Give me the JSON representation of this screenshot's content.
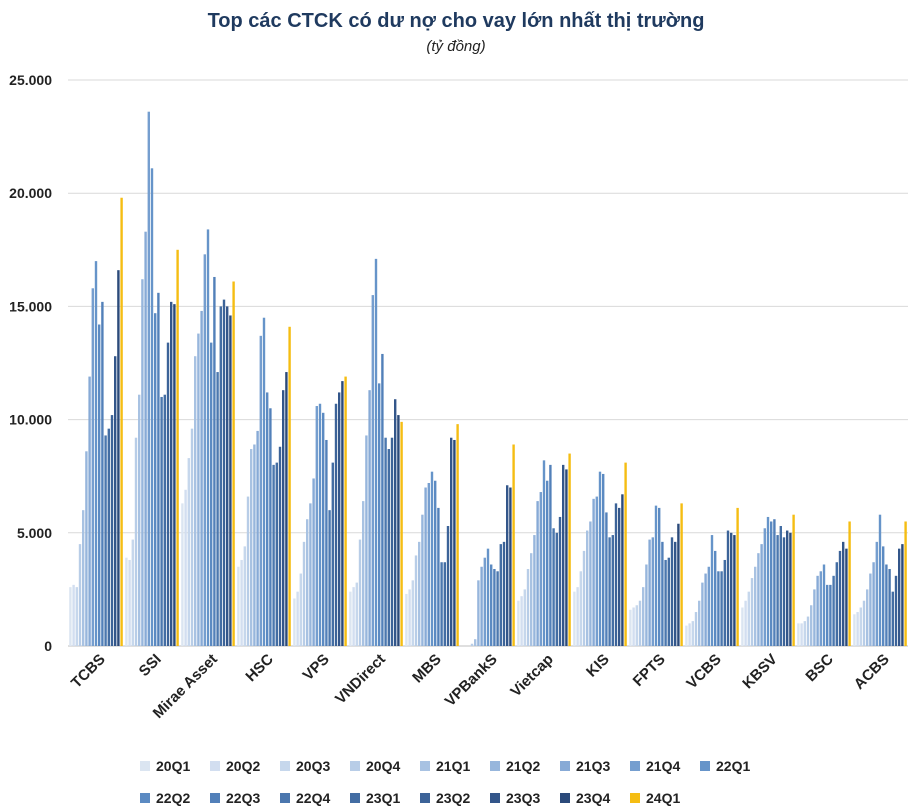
{
  "chart_data": {
    "type": "bar",
    "title": "Top các CTCK có dư nợ cho vay lớn nhất thị trường",
    "subtitle": "(tỷ đồng)",
    "xlabel": "",
    "ylabel": "",
    "ylim": [
      0,
      25000
    ],
    "yticks": [
      "0",
      "5.000",
      "10.000",
      "15.000",
      "20.000",
      "25.000"
    ],
    "grid": true,
    "legend_position": "bottom",
    "categories": [
      "TCBS",
      "SSI",
      "Mirae Asset",
      "HSC",
      "VPS",
      "VNDirect",
      "MBS",
      "VPBankS",
      "Vietcap",
      "KIS",
      "FPTS",
      "VCBS",
      "KBSV",
      "BSC",
      "ACBS"
    ],
    "series": [
      {
        "name": "20Q1",
        "color": "#dbe5f1",
        "values": [
          2600,
          3900,
          6300,
          3500,
          2100,
          2400,
          2300,
          0,
          2000,
          2400,
          1600,
          900,
          1700,
          1000,
          1400
        ]
      },
      {
        "name": "20Q2",
        "color": "#d2def0",
        "values": [
          2700,
          3800,
          6900,
          3800,
          2400,
          2600,
          2500,
          0,
          2200,
          2600,
          1700,
          1000,
          2000,
          1000,
          1500
        ]
      },
      {
        "name": "20Q3",
        "color": "#c6d7ec",
        "values": [
          2600,
          4700,
          8300,
          4400,
          3200,
          2800,
          2900,
          0,
          2500,
          3300,
          1800,
          1100,
          2400,
          1100,
          1700
        ]
      },
      {
        "name": "20Q4",
        "color": "#b8cde7",
        "values": [
          4500,
          9200,
          9600,
          6600,
          4600,
          4700,
          4000,
          100,
          3400,
          4200,
          2000,
          1500,
          3000,
          1300,
          2000
        ]
      },
      {
        "name": "21Q1",
        "color": "#a8c2e2",
        "values": [
          6000,
          11100,
          12800,
          8700,
          5600,
          6400,
          4600,
          300,
          4100,
          5100,
          2600,
          2000,
          3500,
          1800,
          2500
        ]
      },
      {
        "name": "21Q2",
        "color": "#97b6dc",
        "values": [
          8600,
          16200,
          13800,
          8900,
          6300,
          9300,
          5800,
          2900,
          4900,
          5500,
          3600,
          2800,
          4100,
          2500,
          3200
        ]
      },
      {
        "name": "21Q3",
        "color": "#87aad6",
        "values": [
          11900,
          18300,
          14800,
          9500,
          7400,
          11300,
          7000,
          3500,
          6400,
          6500,
          4700,
          3200,
          4500,
          3100,
          3700
        ]
      },
      {
        "name": "21Q4",
        "color": "#759ecf",
        "values": [
          15800,
          23600,
          17300,
          13700,
          10600,
          15500,
          7200,
          3900,
          6800,
          6600,
          4800,
          3500,
          5200,
          3300,
          4600
        ]
      },
      {
        "name": "22Q1",
        "color": "#6694c9",
        "values": [
          17000,
          21100,
          18400,
          14500,
          10700,
          17100,
          7700,
          4300,
          8200,
          7700,
          6200,
          4900,
          5700,
          3600,
          5800
        ]
      },
      {
        "name": "22Q2",
        "color": "#5b8ac2",
        "values": [
          14200,
          14700,
          13400,
          11200,
          10300,
          11600,
          7300,
          3600,
          7300,
          7600,
          6100,
          4200,
          5500,
          2700,
          4400
        ]
      },
      {
        "name": "22Q3",
        "color": "#5280b9",
        "values": [
          15200,
          15600,
          16300,
          10500,
          9100,
          12900,
          6100,
          3400,
          8000,
          5900,
          4600,
          3300,
          5600,
          2700,
          3600
        ]
      },
      {
        "name": "22Q4",
        "color": "#4b77ae",
        "values": [
          9300,
          11000,
          12100,
          8000,
          6000,
          9200,
          3700,
          3300,
          5200,
          4800,
          3800,
          3300,
          4900,
          3100,
          3400
        ]
      },
      {
        "name": "23Q1",
        "color": "#436da3",
        "values": [
          9600,
          11100,
          15000,
          8100,
          8100,
          8700,
          3700,
          4500,
          5000,
          4900,
          3900,
          3800,
          5300,
          3700,
          2400
        ]
      },
      {
        "name": "23Q2",
        "color": "#3c6398",
        "values": [
          10200,
          13400,
          15300,
          8800,
          10700,
          9200,
          5300,
          4600,
          5700,
          6300,
          4800,
          5100,
          4800,
          4200,
          3100
        ]
      },
      {
        "name": "23Q3",
        "color": "#33568a",
        "values": [
          12800,
          15200,
          15000,
          11300,
          11200,
          10900,
          9200,
          7100,
          8000,
          6100,
          4600,
          5000,
          5100,
          4600,
          4300
        ]
      },
      {
        "name": "23Q4",
        "color": "#2b4a7a",
        "values": [
          16600,
          15100,
          14600,
          12100,
          11700,
          10200,
          9100,
          7000,
          7800,
          6700,
          5400,
          4900,
          5000,
          4300,
          4500
        ]
      },
      {
        "name": "24Q1",
        "color": "#f5bd13",
        "values": [
          19800,
          17500,
          16100,
          14100,
          11900,
          9900,
          9800,
          8900,
          8500,
          8100,
          6300,
          6100,
          5800,
          5500,
          5500
        ]
      }
    ]
  }
}
